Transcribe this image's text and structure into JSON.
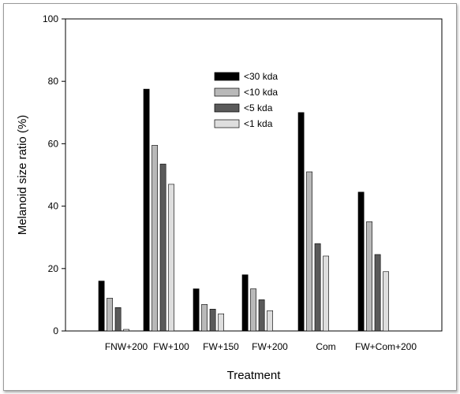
{
  "chart_data": {
    "type": "bar",
    "xlabel": "Treatment",
    "ylabel": "Melanoid size ratio (%)",
    "ylim": [
      0,
      100
    ],
    "yticks": [
      0,
      20,
      40,
      60,
      80,
      100
    ],
    "grid": false,
    "legend_position": "top-center",
    "categories": [
      "FNW+200",
      "FW+100",
      "FW+150",
      "FW+200",
      "Com",
      "FW+Com+200"
    ],
    "series": [
      {
        "name": "<30 kda",
        "color": "#000000",
        "values": [
          16,
          77.5,
          13.5,
          18,
          70,
          44.5
        ]
      },
      {
        "name": "<10 kda",
        "color": "#b9b9b9",
        "values": [
          10.5,
          59.5,
          8.5,
          13.5,
          51,
          35
        ]
      },
      {
        "name": "<5 kda",
        "color": "#5a5a5a",
        "values": [
          7.5,
          53.5,
          7,
          10,
          28,
          24.5
        ]
      },
      {
        "name": "<1 kda",
        "color": "#dedede",
        "values": [
          0.5,
          47,
          5.5,
          6.5,
          24,
          19
        ]
      }
    ]
  }
}
